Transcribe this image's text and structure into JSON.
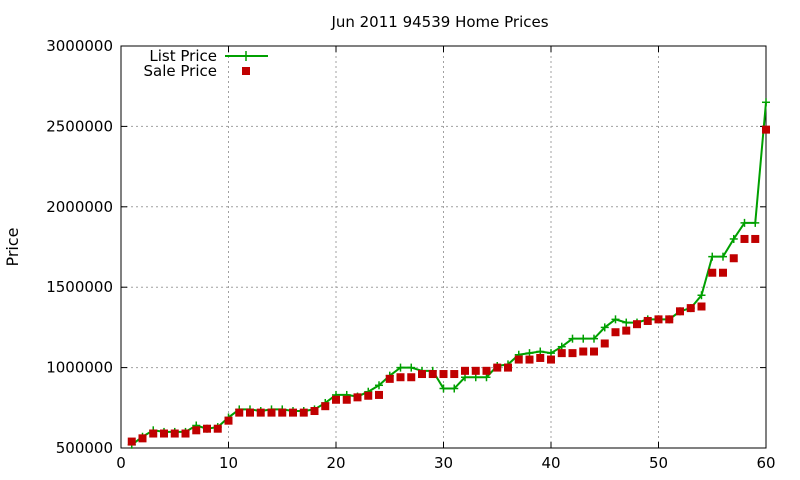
{
  "chart_data": {
    "type": "line",
    "title": "Jun 2011 94539 Home Prices",
    "xlabel": "",
    "ylabel": "Price",
    "xlim": [
      0,
      60
    ],
    "ylim": [
      500000,
      3000000
    ],
    "xticks": [
      0,
      10,
      20,
      30,
      40,
      50,
      60
    ],
    "yticks": [
      500000,
      1000000,
      1500000,
      2000000,
      2500000,
      3000000
    ],
    "xtick_labels": [
      "0",
      "10",
      "20",
      "30",
      "40",
      "50",
      "60"
    ],
    "ytick_labels": [
      "500000",
      "1000000",
      "1500000",
      "2000000",
      "2500000",
      "3000000"
    ],
    "grid": true,
    "legend_position": "top-left",
    "x": [
      1,
      2,
      3,
      4,
      5,
      6,
      7,
      8,
      9,
      10,
      11,
      12,
      13,
      14,
      15,
      16,
      17,
      18,
      19,
      20,
      21,
      22,
      23,
      24,
      25,
      26,
      27,
      28,
      29,
      30,
      31,
      32,
      33,
      34,
      35,
      36,
      37,
      38,
      39,
      40,
      41,
      42,
      43,
      44,
      45,
      46,
      47,
      48,
      49,
      50,
      51,
      52,
      53,
      54,
      55,
      56,
      57,
      58,
      59,
      60
    ],
    "series": [
      {
        "name": "List Price",
        "style": "line-plus",
        "color": "#00a000",
        "values": [
          520000,
          570000,
          610000,
          600000,
          600000,
          600000,
          640000,
          620000,
          630000,
          690000,
          740000,
          740000,
          730000,
          740000,
          740000,
          730000,
          730000,
          740000,
          780000,
          830000,
          830000,
          820000,
          850000,
          890000,
          950000,
          1000000,
          1000000,
          980000,
          980000,
          870000,
          870000,
          940000,
          940000,
          940000,
          1010000,
          1020000,
          1080000,
          1090000,
          1100000,
          1090000,
          1130000,
          1180000,
          1180000,
          1180000,
          1250000,
          1300000,
          1280000,
          1280000,
          1300000,
          1300000,
          1300000,
          1350000,
          1370000,
          1450000,
          1690000,
          1690000,
          1800000,
          1900000,
          1900000,
          2650000
        ]
      },
      {
        "name": "Sale Price",
        "style": "square-points",
        "color": "#c00000",
        "values": [
          540000,
          560000,
          590000,
          590000,
          590000,
          590000,
          610000,
          620000,
          620000,
          670000,
          720000,
          720000,
          720000,
          720000,
          720000,
          720000,
          720000,
          730000,
          760000,
          800000,
          800000,
          815000,
          825000,
          830000,
          930000,
          940000,
          940000,
          960000,
          960000,
          960000,
          960000,
          980000,
          980000,
          980000,
          1000000,
          1000000,
          1050000,
          1050000,
          1060000,
          1050000,
          1090000,
          1090000,
          1100000,
          1100000,
          1150000,
          1220000,
          1230000,
          1270000,
          1290000,
          1300000,
          1300000,
          1350000,
          1370000,
          1380000,
          1590000,
          1590000,
          1680000,
          1800000,
          1800000,
          2480000
        ]
      }
    ]
  }
}
